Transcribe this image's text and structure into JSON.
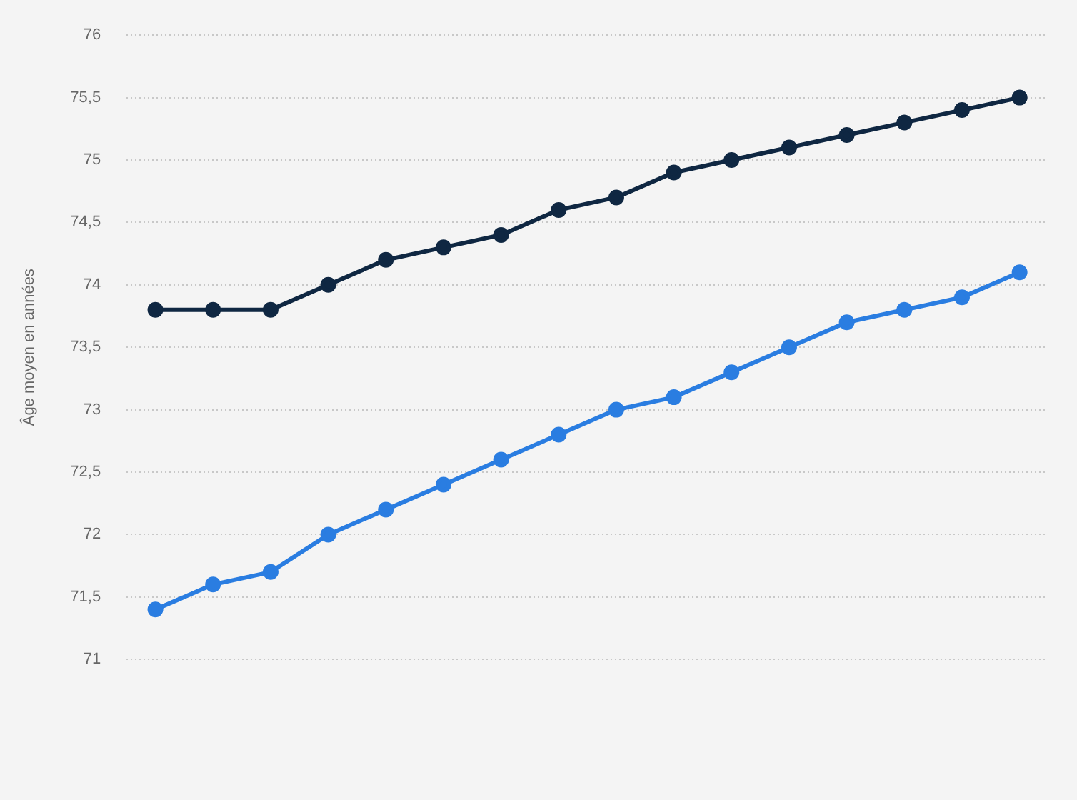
{
  "chart_data": {
    "type": "line",
    "ylabel": "Âge moyen en années",
    "categories": [
      null,
      null,
      null,
      null,
      null,
      null,
      null,
      null,
      null,
      null,
      null,
      null,
      null,
      null,
      null,
      null
    ],
    "series": [
      {
        "color": "#0f2742",
        "values": [
          73.8,
          73.8,
          73.8,
          74.0,
          74.2,
          74.3,
          74.4,
          74.6,
          74.7,
          74.9,
          75.0,
          75.1,
          75.2,
          75.3,
          75.4,
          75.5
        ]
      },
      {
        "color": "#2a7de1",
        "values": [
          71.4,
          71.6,
          71.7,
          72.0,
          72.2,
          72.4,
          72.6,
          72.8,
          73.0,
          73.1,
          73.3,
          73.5,
          73.7,
          73.8,
          73.9,
          74.1
        ]
      }
    ],
    "ylim": [
      71,
      76
    ],
    "yticks": [
      71,
      {
        "value": 71.5,
        "label": "71,5"
      },
      72,
      {
        "value": 72.5,
        "label": "72,5"
      },
      73,
      {
        "value": 73.5,
        "label": "73,5"
      },
      74,
      {
        "value": 74.5,
        "label": "74,5"
      },
      75,
      {
        "value": 75.5,
        "label": "75,5"
      },
      76
    ],
    "grid": "y",
    "marker": "circle"
  }
}
